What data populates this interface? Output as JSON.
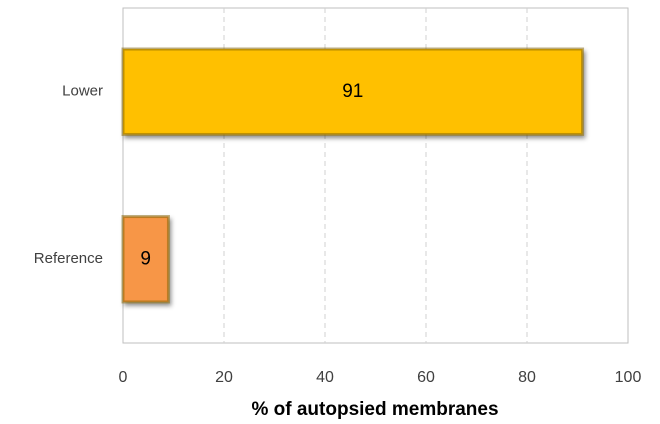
{
  "chart_data": {
    "type": "hbar",
    "categories": [
      "Lower",
      "Reference"
    ],
    "values": [
      91,
      9
    ],
    "colors": [
      "#ffc000",
      "#f79646"
    ],
    "xlim": [
      0,
      100
    ],
    "xticks": [
      0,
      20,
      40,
      60,
      80,
      100
    ],
    "xlabel": "% of autopsied membranes",
    "grid": true
  }
}
